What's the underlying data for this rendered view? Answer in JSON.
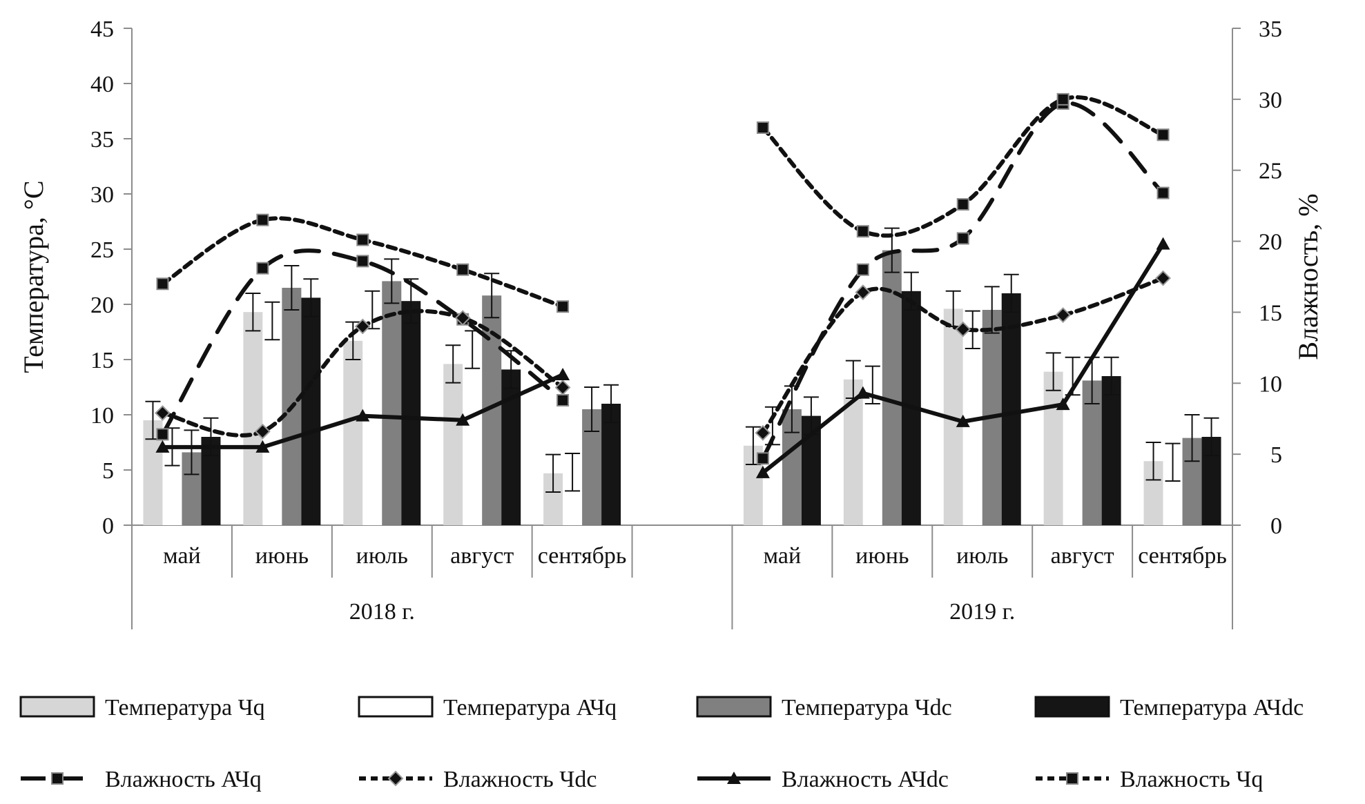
{
  "chart_data": {
    "type": "bar",
    "title": "",
    "ylabel": "Температура, °С",
    "y2label": "Влажность, %",
    "ylim": [
      0,
      45
    ],
    "y2lim": [
      0,
      35
    ],
    "yticks": [
      "0",
      "5",
      "10",
      "15",
      "20",
      "25",
      "30",
      "35",
      "40",
      "45"
    ],
    "y2ticks": [
      "0",
      "5",
      "10",
      "15",
      "20",
      "25",
      "30",
      "35"
    ],
    "groups": [
      {
        "label": "2018 г.",
        "categories": [
          "май",
          "июнь",
          "июль",
          "август",
          "сентябрь"
        ]
      },
      {
        "label": "2019 г.",
        "categories": [
          "май",
          "июнь",
          "июль",
          "август",
          "сентябрь"
        ]
      }
    ],
    "bar_series": [
      {
        "name": "Температура Чq",
        "color": "#d6d6d6",
        "values": [
          [
            9.5,
            19.3,
            16.7,
            14.6,
            4.7
          ],
          [
            7.2,
            13.2,
            19.6,
            13.9,
            5.8
          ]
        ],
        "errors": [
          [
            1.7,
            1.7,
            1.7,
            1.7,
            1.7
          ],
          [
            1.7,
            1.7,
            1.6,
            1.7,
            1.7
          ]
        ]
      },
      {
        "name": "Температура АЧq",
        "color": "#ffffff",
        "values": [
          [
            7.1,
            18.5,
            19.5,
            15.9,
            4.8
          ],
          [
            9.0,
            12.7,
            17.7,
            13.5,
            5.7
          ]
        ],
        "errors": [
          [
            1.7,
            1.7,
            1.7,
            1.7,
            1.7
          ],
          [
            1.7,
            1.7,
            1.7,
            1.7,
            1.7
          ]
        ]
      },
      {
        "name": "Температура Чdc",
        "color": "#808080",
        "values": [
          [
            6.6,
            21.5,
            22.1,
            20.8,
            10.5
          ],
          [
            10.5,
            24.9,
            19.5,
            13.1,
            7.9
          ]
        ],
        "errors": [
          [
            2.0,
            2.0,
            2.0,
            2.0,
            2.0
          ],
          [
            2.1,
            2.0,
            2.1,
            2.1,
            2.1
          ]
        ]
      },
      {
        "name": "Температура АЧdc",
        "color": "#151515",
        "values": [
          [
            8.0,
            20.6,
            20.3,
            14.1,
            11.0
          ],
          [
            9.9,
            21.2,
            21.0,
            13.5,
            8.0
          ]
        ],
        "errors": [
          [
            1.7,
            1.7,
            2.0,
            1.7,
            1.7
          ],
          [
            1.7,
            1.7,
            1.7,
            1.7,
            1.7
          ]
        ]
      }
    ],
    "line_series": [
      {
        "name": "Влажность АЧq",
        "style": "longdash",
        "marker": "square",
        "values": [
          [
            6.4,
            18.1,
            18.6,
            14.5,
            8.8
          ],
          [
            4.7,
            18.0,
            20.2,
            29.7,
            23.4
          ]
        ]
      },
      {
        "name": "Влажность Чdc",
        "style": "shortdash",
        "marker": "diamond",
        "values": [
          [
            7.9,
            6.6,
            14.0,
            14.6,
            9.7
          ],
          [
            6.5,
            16.4,
            13.8,
            14.8,
            17.4
          ]
        ]
      },
      {
        "name": "Влажность АЧdc",
        "style": "solid",
        "marker": "triangle",
        "values": [
          [
            5.5,
            5.5,
            7.7,
            7.4,
            10.6
          ],
          [
            3.7,
            9.3,
            7.3,
            8.5,
            19.8
          ]
        ]
      },
      {
        "name": "Влажность Чq",
        "style": "shortdash",
        "marker": "square",
        "values": [
          [
            17.0,
            21.5,
            20.1,
            18.0,
            15.4
          ],
          [
            28.0,
            20.7,
            22.6,
            30.0,
            27.5
          ]
        ]
      }
    ],
    "legend_position": "bottom",
    "grid": false
  }
}
